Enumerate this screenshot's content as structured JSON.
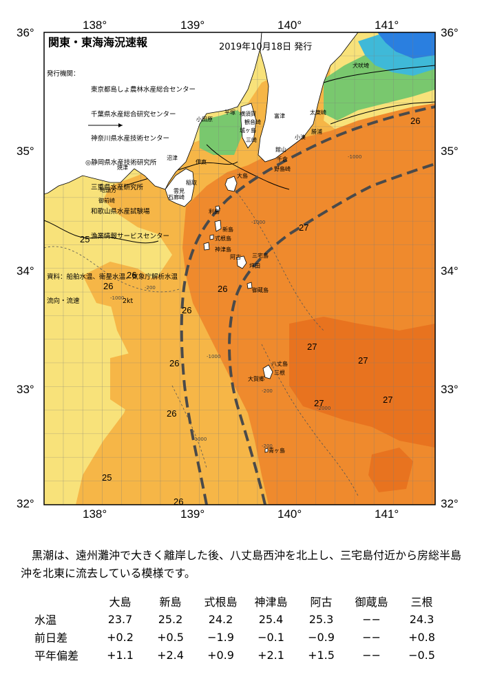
{
  "header": {
    "title": "関東・東海海況速報",
    "date": "2019年10月18日 発行",
    "issuers_label": "発行機関：",
    "issuers": [
      "東京都島しょ農林水産総合センター",
      "千葉県水産総合研究センター",
      "神奈川県水産技術センター",
      "◎静岡県水産技術研究所",
      "三重県水産研究所",
      "和歌山県水産試験場",
      "漁業情報サービスセンター"
    ],
    "source": "資料：船舶水温、衛星水温、気象庁解析水温",
    "current_legend": "流向・流速",
    "current_speed": "2kt"
  },
  "axes": {
    "lon_labels": [
      "138°",
      "139°",
      "140°",
      "141°"
    ],
    "lat_labels": [
      "36°",
      "35°",
      "34°",
      "33°",
      "32°"
    ]
  },
  "places": {
    "inubozaki": "犬吠埼",
    "taitou": "太東崎",
    "katsuura": "勝浦",
    "kominato": "小湊",
    "odawara": "小田原",
    "hiratsuka": "平塚",
    "yokosuka": "横須賀",
    "kannonzaki": "観音崎",
    "futtsu": "富津",
    "jogashima": "城ヶ島",
    "misaki": "三崎",
    "tateyama": "館山",
    "chikura": "千倉",
    "nojimazaki": "野島崎",
    "yaizu": "焼津",
    "numazu": "沼津",
    "ito": "伊東",
    "inatori": "稲取",
    "mera": "雲見",
    "irouzaki": "石廊崎",
    "jitosanzaki": "地頭方",
    "omaezaki": "御前崎",
    "oshima": "大島",
    "toshima": "利島",
    "niijima": "新島",
    "shikinejima": "式根島",
    "kozushima": "神津島",
    "miyake": "三宅島",
    "ako": "阿古",
    "tsubota": "坪田",
    "mikura": "御蔵島",
    "hachijo": "八丈島",
    "mitsune": "三根",
    "okago": "大賀郷",
    "aogashima": "青ヶ島"
  },
  "isotherm_labels": [
    "25",
    "26",
    "26",
    "26",
    "26",
    "26",
    "26",
    "26",
    "26",
    "26",
    "26",
    "27",
    "27",
    "27",
    "27",
    "27",
    "25"
  ],
  "depth_labels": [
    "-1000",
    "-200",
    "-1000",
    "-200",
    "-1000",
    "-1000",
    "-200",
    "-2000",
    "-1000"
  ],
  "kuroshio": "黒潮流路（推定）",
  "colors": {
    "land": "#ffffff",
    "cold": "#79c86e",
    "cool": "#f8e27a",
    "warm": "#f6b647",
    "hot": "#ef8a2d",
    "kuroshio_line": "#4a4a4a"
  },
  "summary": "黒潮は、遠州灘沖で大きく離岸した後、八丈島西沖を北上し、三宅島付近から房総半島沖を北東に流去している模様です。",
  "table": {
    "columns": [
      "大島",
      "新島",
      "式根島",
      "神津島",
      "阿古",
      "御蔵島",
      "三根"
    ],
    "rows": [
      {
        "label": "水温",
        "values": [
          "23.7",
          "25.2",
          "24.2",
          "25.4",
          "25.3",
          "−−",
          "24.3"
        ]
      },
      {
        "label": "前日差",
        "values": [
          "+0.2",
          "+0.5",
          "−1.9",
          "−0.1",
          "−0.9",
          "−−",
          "+0.8"
        ]
      },
      {
        "label": "平年偏差",
        "values": [
          "+1.1",
          "+2.4",
          "+0.9",
          "+2.1",
          "+1.5",
          "−−",
          "−0.5"
        ]
      }
    ]
  }
}
